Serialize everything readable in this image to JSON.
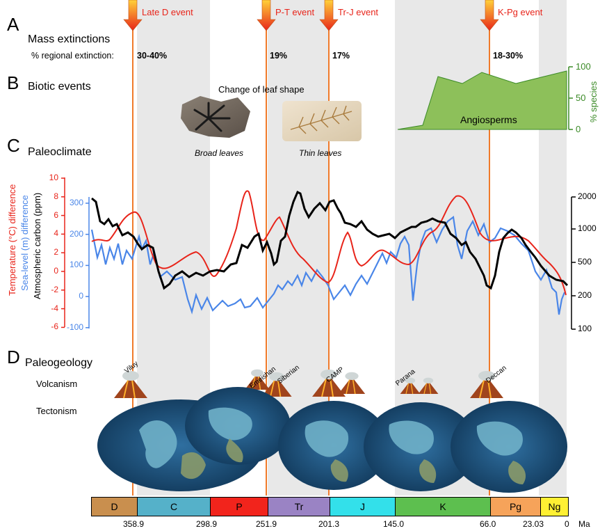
{
  "sections": {
    "a": {
      "letter": "A",
      "title": "Mass extinctions",
      "pct_label": "% regional extinction:"
    },
    "b": {
      "letter": "B",
      "title": "Biotic events"
    },
    "c": {
      "letter": "C",
      "title": "Paleoclimate"
    },
    "d": {
      "letter": "D",
      "title": "Paleogeology",
      "volcanism": "Volcanism",
      "tectonism": "Tectonism"
    }
  },
  "events": [
    {
      "label": "Late D event",
      "pct": "30-40%"
    },
    {
      "label": "P-T event",
      "pct": "19%"
    },
    {
      "label": "Tr-J event",
      "pct": "17%"
    },
    {
      "label": "K-Pg event",
      "pct": "18-30%"
    }
  ],
  "biotic": {
    "leaf_title": "Change of leaf shape",
    "broad": "Broad leaves",
    "thin": "Thin leaves",
    "angiosperms": "Angiosperms",
    "species_axis": "% species",
    "species_ticks": [
      "100",
      "50",
      "0"
    ]
  },
  "climate": {
    "temp_axis": "Temperature (°C) difference",
    "sea_axis": "Sea-level (m) difference",
    "carbon_axis": "Atmospheric carbon (ppm)",
    "temp_ticks": [
      "10",
      "8",
      "6",
      "4",
      "2",
      "0",
      "-2",
      "-4",
      "-6"
    ],
    "sea_ticks": [
      "300",
      "200",
      "100",
      "0",
      "-100"
    ],
    "carbon_ticks": [
      "2000",
      "1000",
      "500",
      "200",
      "100"
    ]
  },
  "volcanoes": [
    "Viluy",
    "Emeishan",
    "Siberian",
    "CAMP",
    "Parana",
    "Deccan"
  ],
  "periods": [
    {
      "label": "D",
      "color": "#c98f4e"
    },
    {
      "label": "C",
      "color": "#55b1c9"
    },
    {
      "label": "P",
      "color": "#f2241c"
    },
    {
      "label": "Tr",
      "color": "#9a83c4"
    },
    {
      "label": "J",
      "color": "#33e0ea"
    },
    {
      "label": "K",
      "color": "#5dbf4f"
    },
    {
      "label": "Pg",
      "color": "#f6a35a"
    },
    {
      "label": "Ng",
      "color": "#fff033"
    }
  ],
  "time_ticks": [
    "358.9",
    "298.9",
    "251.9",
    "201.3",
    "145.0",
    "66.0",
    "23.03",
    "0",
    "Ma"
  ],
  "colors": {
    "temp": "#e8241a",
    "sea": "#4a86e8",
    "carbon": "#000000",
    "angio_fill": "#8dc05a",
    "angio_stroke": "#3a8a26",
    "event_line": "#f07a2a"
  }
}
